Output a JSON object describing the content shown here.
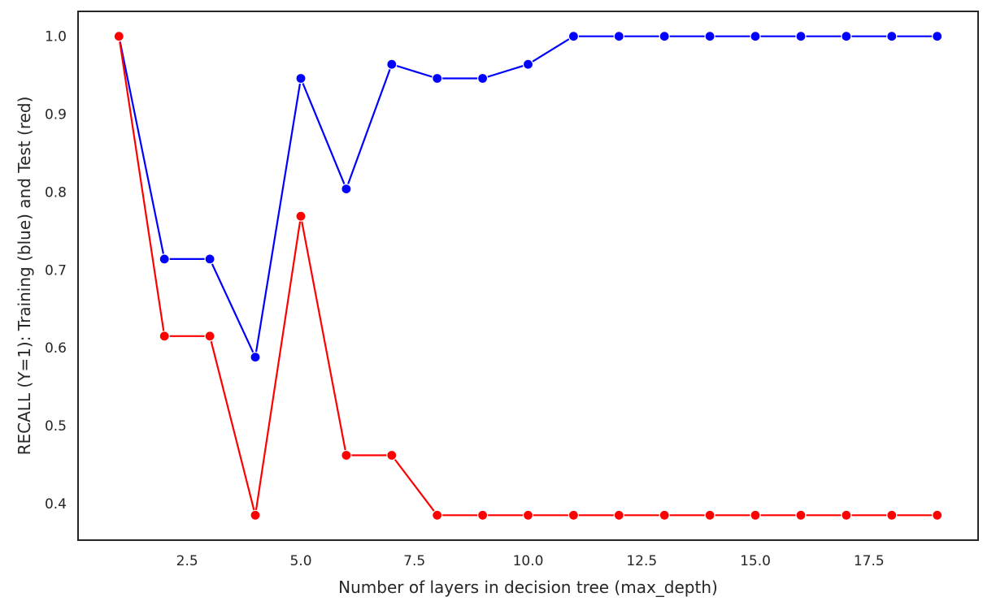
{
  "chart_data": {
    "type": "line",
    "title": "",
    "xlabel": "Number of layers in decision tree (max_depth)",
    "ylabel": "RECALL (Y=1): Training (blue) and Test (red)",
    "xlim": [
      0.1,
      19.9
    ],
    "ylim": [
      0.353,
      1.032
    ],
    "grid": false,
    "legend": "none",
    "x_ticks": [
      {
        "value": 2.5,
        "label": "2.5"
      },
      {
        "value": 5.0,
        "label": "5.0"
      },
      {
        "value": 7.5,
        "label": "7.5"
      },
      {
        "value": 10.0,
        "label": "10.0"
      },
      {
        "value": 12.5,
        "label": "12.5"
      },
      {
        "value": 15.0,
        "label": "15.0"
      },
      {
        "value": 17.5,
        "label": "17.5"
      }
    ],
    "y_ticks": [
      {
        "value": 0.4,
        "label": "0.4"
      },
      {
        "value": 0.5,
        "label": "0.5"
      },
      {
        "value": 0.6,
        "label": "0.6"
      },
      {
        "value": 0.7,
        "label": "0.7"
      },
      {
        "value": 0.8,
        "label": "0.8"
      },
      {
        "value": 0.9,
        "label": "0.9"
      },
      {
        "value": 1.0,
        "label": "1.0"
      }
    ],
    "x": [
      1,
      2,
      3,
      4,
      5,
      6,
      7,
      8,
      9,
      10,
      11,
      12,
      13,
      14,
      15,
      16,
      17,
      18,
      19
    ],
    "series": [
      {
        "key": "training",
        "color": "#0000ff",
        "values": [
          1.0,
          0.714,
          0.714,
          0.588,
          0.946,
          0.804,
          0.964,
          0.946,
          0.946,
          0.964,
          1.0,
          1.0,
          1.0,
          1.0,
          1.0,
          1.0,
          1.0,
          1.0,
          1.0
        ]
      },
      {
        "key": "test",
        "color": "#ff0000",
        "values": [
          1.0,
          0.615,
          0.615,
          0.385,
          0.769,
          0.462,
          0.462,
          0.385,
          0.385,
          0.385,
          0.385,
          0.385,
          0.385,
          0.385,
          0.385,
          0.385,
          0.385,
          0.385,
          0.385
        ]
      }
    ],
    "colors": {
      "marker_edge": "#ffffff",
      "frame": "#262626",
      "background": "#ffffff"
    }
  }
}
